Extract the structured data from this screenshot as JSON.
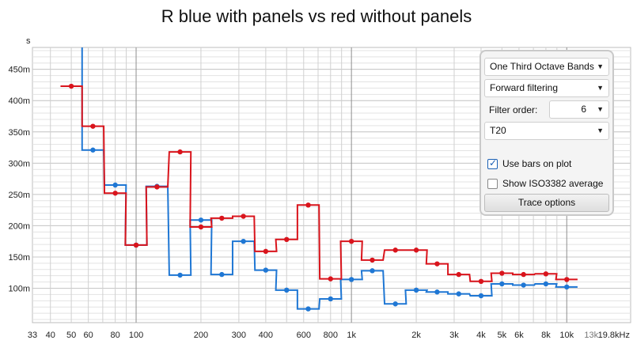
{
  "title": "R blue with panels vs red without panels",
  "colors": {
    "blue": "#1f77d4",
    "red": "#d9141c"
  },
  "panel": {
    "band_select": "One Third Octave Bands",
    "filtering_select": "Forward filtering",
    "filter_order_label": "Filter order:",
    "filter_order_value": "6",
    "metric_select": "T20",
    "use_bars_label": "Use bars on plot",
    "use_bars_checked": true,
    "show_iso_label": "Show ISO3382 average",
    "show_iso_checked": false,
    "trace_button": "Trace options",
    "dropdown_icon": "triangle-down-icon"
  },
  "chart_data": {
    "type": "line",
    "step": true,
    "title": "R blue with panels vs red without panels",
    "ylabel": "s",
    "xscale": "log",
    "xlim": [
      33,
      19800
    ],
    "ylim": [
      0.045,
      0.485
    ],
    "grid": true,
    "x_ticks": [
      {
        "v": 33,
        "label": "33"
      },
      {
        "v": 40,
        "label": "40"
      },
      {
        "v": 50,
        "label": "50"
      },
      {
        "v": 60,
        "label": "60"
      },
      {
        "v": 80,
        "label": "80"
      },
      {
        "v": 100,
        "label": "100"
      },
      {
        "v": 200,
        "label": "200"
      },
      {
        "v": 300,
        "label": "300"
      },
      {
        "v": 400,
        "label": "400"
      },
      {
        "v": 600,
        "label": "600"
      },
      {
        "v": 800,
        "label": "800"
      },
      {
        "v": 1000,
        "label": "1k"
      },
      {
        "v": 2000,
        "label": "2k"
      },
      {
        "v": 3000,
        "label": "3k"
      },
      {
        "v": 4000,
        "label": "4k"
      },
      {
        "v": 5000,
        "label": "5k"
      },
      {
        "v": 6000,
        "label": "6k"
      },
      {
        "v": 8000,
        "label": "8k"
      },
      {
        "v": 10000,
        "label": "10k"
      },
      {
        "v": 13000,
        "label": "13k",
        "dim": true
      },
      {
        "v": 19800,
        "label": "19.8kHz"
      }
    ],
    "y_ticks": [
      {
        "v": 0.1,
        "label": "100m"
      },
      {
        "v": 0.15,
        "label": "150m"
      },
      {
        "v": 0.2,
        "label": "200m"
      },
      {
        "v": 0.25,
        "label": "250m"
      },
      {
        "v": 0.3,
        "label": "300m"
      },
      {
        "v": 0.35,
        "label": "350m"
      },
      {
        "v": 0.4,
        "label": "400m"
      },
      {
        "v": 0.45,
        "label": "450m"
      }
    ],
    "bands": [
      50,
      63,
      80,
      100,
      125,
      160,
      200,
      250,
      315,
      400,
      500,
      630,
      800,
      1000,
      1250,
      1600,
      2000,
      2500,
      3150,
      4000,
      5000,
      6300,
      8000,
      10000
    ],
    "series": [
      {
        "color": "#1f77d4",
        "x": [
          63,
          80,
          100,
          125,
          160,
          200,
          250,
          315,
          400,
          500,
          630,
          800,
          1000,
          1250,
          1600,
          2000,
          2500,
          3150,
          4000,
          5000,
          6300,
          8000,
          10000
        ],
        "values": [
          0.321,
          0.265,
          0.169,
          0.263,
          0.121,
          0.209,
          0.122,
          0.175,
          0.129,
          0.097,
          0.067,
          0.083,
          0.114,
          0.128,
          0.075,
          0.097,
          0.094,
          0.091,
          0.088,
          0.107,
          0.105,
          0.107,
          0.102
        ],
        "pre_value": 0.49
      },
      {
        "color": "#d9141c",
        "x": [
          50,
          63,
          80,
          100,
          125,
          160,
          200,
          250,
          315,
          400,
          500,
          630,
          800,
          1000,
          1250,
          1600,
          2000,
          2500,
          3150,
          4000,
          5000,
          6300,
          8000,
          10000
        ],
        "values": [
          0.423,
          0.359,
          0.252,
          0.169,
          0.262,
          0.318,
          0.198,
          0.212,
          0.215,
          0.159,
          0.178,
          0.233,
          0.115,
          0.175,
          0.145,
          0.161,
          0.161,
          0.139,
          0.122,
          0.111,
          0.124,
          0.122,
          0.123,
          0.114
        ]
      }
    ]
  }
}
